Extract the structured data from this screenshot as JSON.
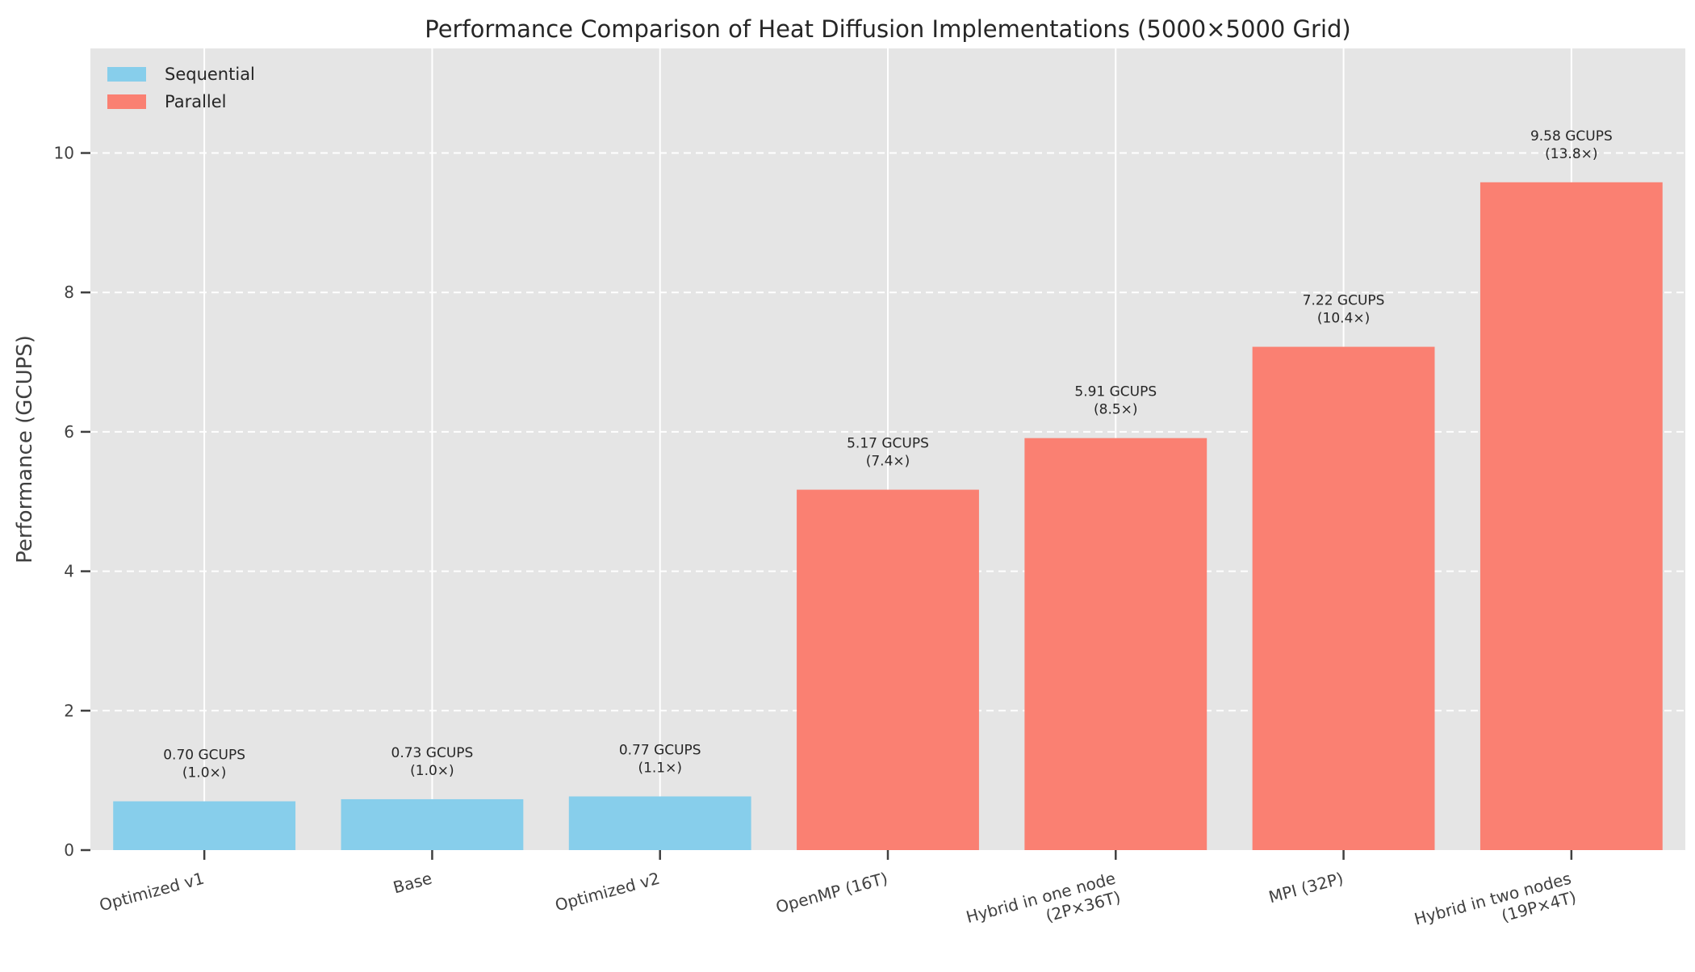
{
  "chart_data": {
    "type": "bar",
    "title": "Performance Comparison of Heat Diffusion Implementations (5000×5000 Grid)",
    "xlabel": "",
    "ylabel": "Performance (GCUPS)",
    "ylim": [
      0,
      11.5
    ],
    "yticks": [
      0,
      2,
      4,
      6,
      8,
      10
    ],
    "grid": "y-dashed, x-solid",
    "legend_position": "top-left",
    "legend": [
      {
        "name": "Sequential",
        "color": "#87ceeb"
      },
      {
        "name": "Parallel",
        "color": "#fa8072"
      }
    ],
    "categories": [
      [
        "Optimized v1"
      ],
      [
        "Base"
      ],
      [
        "Optimized v2"
      ],
      [
        "OpenMP (16T)"
      ],
      [
        "Hybrid in one node",
        "(2P×36T)"
      ],
      [
        "MPI (32P)"
      ],
      [
        "Hybrid in two nodes",
        "(19P×4T)"
      ]
    ],
    "values": [
      0.7,
      0.73,
      0.77,
      5.17,
      5.91,
      7.22,
      9.58
    ],
    "groups": [
      "Sequential",
      "Sequential",
      "Sequential",
      "Parallel",
      "Parallel",
      "Parallel",
      "Parallel"
    ],
    "data_labels": [
      [
        "0.70 GCUPS",
        "(1.0×)"
      ],
      [
        "0.73 GCUPS",
        "(1.0×)"
      ],
      [
        "0.77 GCUPS",
        "(1.1×)"
      ],
      [
        "5.17 GCUPS",
        "(7.4×)"
      ],
      [
        "5.91 GCUPS",
        "(8.5×)"
      ],
      [
        "7.22 GCUPS",
        "(10.4×)"
      ],
      [
        "9.58 GCUPS",
        "(13.8×)"
      ]
    ],
    "colors": {
      "plot_background": "#e5e5e5",
      "Sequential": "#87ceeb",
      "Parallel": "#fa8072",
      "grid": "#ffffff"
    }
  }
}
